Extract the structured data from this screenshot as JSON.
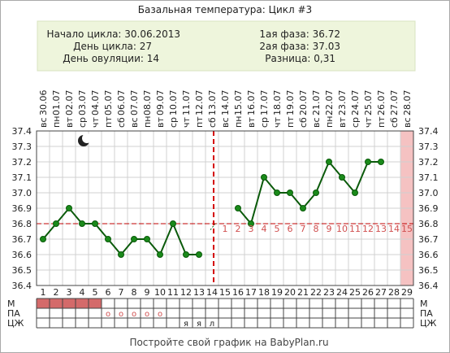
{
  "page": {
    "title": "Базальная температура: Цикл #3",
    "footer": "Постройте свой график на BabyPlan.ru"
  },
  "info": {
    "cycle_start": "Начало цикла: 30.06.2013",
    "cycle_day": "День цикла: 27",
    "ovulation_day": "День овуляции: 14",
    "phase1": "1ая фаза: 36.72",
    "phase2": "2ая фаза: 37.03",
    "difference": "Разница: 0,31"
  },
  "colors": {
    "line": "#0a5a0a",
    "point": "#1a8a1a",
    "coverline": "#c00000",
    "ovulation_line": "#d40000",
    "info_bg": "#eef5dc",
    "m_fill": "#d46a6a",
    "future_column": "#f5c2c2",
    "phase2_label": "#d05050",
    "grid": "#d0d0d0"
  },
  "chart_data": {
    "type": "line",
    "weekdays": [
      "вс",
      "пн",
      "вт",
      "ср",
      "чт",
      "пт",
      "сб",
      "вс",
      "пн",
      "вт",
      "ср",
      "чт",
      "пт",
      "сб",
      "вс",
      "пн",
      "вт",
      "ср",
      "чт",
      "пт",
      "сб",
      "вс",
      "пн",
      "вт",
      "ср",
      "чт",
      "пт",
      "сб",
      "вс"
    ],
    "dates": [
      "30.06",
      "01.07",
      "02.07",
      "03.07",
      "04.07",
      "05.07",
      "06.07",
      "07.07",
      "08.07",
      "09.07",
      "10.07",
      "11.07",
      "12.07",
      "13.07",
      "14.07",
      "15.07",
      "16.07",
      "17.07",
      "18.07",
      "19.07",
      "20.07",
      "21.07",
      "22.07",
      "23.07",
      "24.07",
      "25.07",
      "26.07",
      "27.07",
      "28.07"
    ],
    "days": [
      1,
      2,
      3,
      4,
      5,
      6,
      7,
      8,
      9,
      10,
      11,
      12,
      13,
      14,
      15,
      16,
      17,
      18,
      19,
      20,
      21,
      22,
      23,
      24,
      25,
      26,
      27,
      28,
      29
    ],
    "temperatures": [
      36.7,
      36.8,
      36.9,
      36.8,
      36.8,
      36.7,
      36.6,
      36.7,
      36.7,
      36.6,
      36.8,
      36.6,
      36.6,
      null,
      null,
      36.9,
      36.8,
      37.1,
      37.0,
      37.0,
      36.9,
      37.0,
      37.2,
      37.1,
      37.0,
      37.2,
      37.2,
      null,
      null
    ],
    "ylim": [
      36.4,
      37.4
    ],
    "yticks": [
      "36.4",
      "36.5",
      "36.6",
      "36.7",
      "36.8",
      "36.9",
      "37.0",
      "37.1",
      "37.2",
      "37.3",
      "37.4"
    ],
    "coverline": 36.8,
    "ovulation_day": 14,
    "phase2_labels": [
      "1",
      "2",
      "3",
      "4",
      "5",
      "6",
      "7",
      "8",
      "9",
      "10",
      "11",
      "12",
      "13",
      "14",
      "15"
    ],
    "phase2_start_day": 15,
    "rows": {
      "labels": [
        "М",
        "ПА",
        "ЦЖ"
      ],
      "m_days": [
        1,
        2,
        3,
        4,
        5
      ],
      "pa_marks": [
        {
          "day": 6,
          "mark": "o"
        },
        {
          "day": 7,
          "mark": "o"
        },
        {
          "day": 8,
          "mark": "o"
        },
        {
          "day": 9,
          "mark": "o"
        },
        {
          "day": 10,
          "mark": "o"
        },
        {
          "day": 12,
          "mark": "я"
        },
        {
          "day": 13,
          "mark": "я"
        },
        {
          "day": 14,
          "mark": "л"
        }
      ]
    },
    "icons": [
      {
        "name": "moon-icon",
        "day": 4
      }
    ]
  }
}
